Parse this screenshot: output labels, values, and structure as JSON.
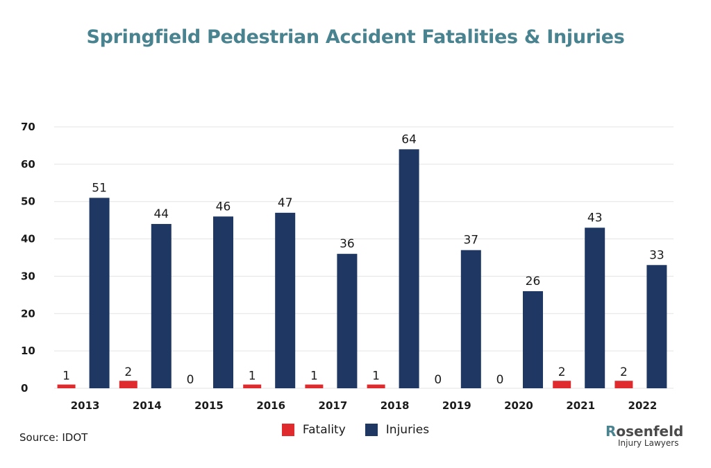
{
  "title": "Springfield Pedestrian Accident Fatalities & Injuries",
  "source": "Source: IDOT",
  "logo": {
    "mark": "R",
    "name": "osenfeld",
    "sub": "Injury Lawyers"
  },
  "colors": {
    "title": "#4a8390",
    "fatality": "#e02b2e",
    "injuries": "#1f3763",
    "grid": "#e3e3e3"
  },
  "chart_data": {
    "type": "bar",
    "title": "Springfield Pedestrian Accident Fatalities & Injuries",
    "xlabel": "",
    "ylabel": "",
    "ylim": [
      0,
      70
    ],
    "yticks": [
      0,
      10,
      20,
      30,
      40,
      50,
      60,
      70
    ],
    "grid": true,
    "legend_position": "bottom",
    "categories": [
      "2013",
      "2014",
      "2015",
      "2016",
      "2017",
      "2018",
      "2019",
      "2020",
      "2021",
      "2022"
    ],
    "series": [
      {
        "name": "Fatality",
        "color": "#e02b2e",
        "values": [
          1,
          2,
          0,
          1,
          1,
          1,
          0,
          0,
          2,
          2
        ]
      },
      {
        "name": "Injuries",
        "color": "#1f3763",
        "values": [
          51,
          44,
          46,
          47,
          36,
          64,
          37,
          26,
          43,
          33
        ]
      }
    ]
  }
}
